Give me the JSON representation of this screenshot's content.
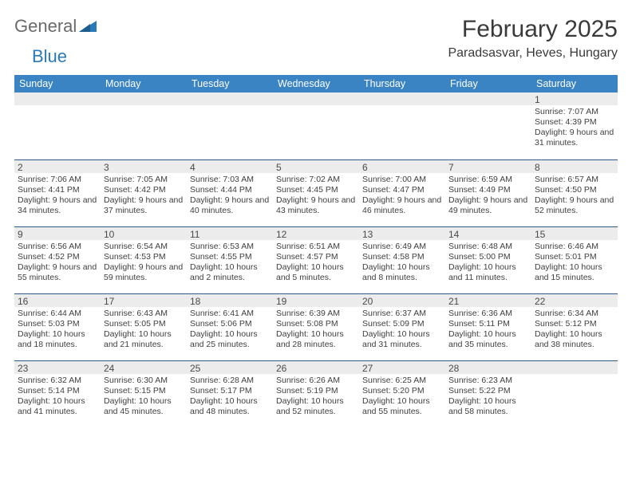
{
  "brand": {
    "word1": "General",
    "word2": "Blue"
  },
  "title": {
    "month": "February 2025",
    "location": "Paradsasvar, Heves, Hungary"
  },
  "columns": [
    "Sunday",
    "Monday",
    "Tuesday",
    "Wednesday",
    "Thursday",
    "Friday",
    "Saturday"
  ],
  "colors": {
    "header_bg": "#3a84c4",
    "header_text": "#ffffff",
    "row_rule": "#2f5a87",
    "daynum_bg": "#ececec",
    "brand_gray": "#6a6a6a",
    "brand_blue": "#2a7ab9"
  },
  "weeks": [
    [
      {
        "n": "",
        "sunrise": "",
        "sunset": "",
        "daylight": ""
      },
      {
        "n": "",
        "sunrise": "",
        "sunset": "",
        "daylight": ""
      },
      {
        "n": "",
        "sunrise": "",
        "sunset": "",
        "daylight": ""
      },
      {
        "n": "",
        "sunrise": "",
        "sunset": "",
        "daylight": ""
      },
      {
        "n": "",
        "sunrise": "",
        "sunset": "",
        "daylight": ""
      },
      {
        "n": "",
        "sunrise": "",
        "sunset": "",
        "daylight": ""
      },
      {
        "n": "1",
        "sunrise": "Sunrise: 7:07 AM",
        "sunset": "Sunset: 4:39 PM",
        "daylight": "Daylight: 9 hours and 31 minutes."
      }
    ],
    [
      {
        "n": "2",
        "sunrise": "Sunrise: 7:06 AM",
        "sunset": "Sunset: 4:41 PM",
        "daylight": "Daylight: 9 hours and 34 minutes."
      },
      {
        "n": "3",
        "sunrise": "Sunrise: 7:05 AM",
        "sunset": "Sunset: 4:42 PM",
        "daylight": "Daylight: 9 hours and 37 minutes."
      },
      {
        "n": "4",
        "sunrise": "Sunrise: 7:03 AM",
        "sunset": "Sunset: 4:44 PM",
        "daylight": "Daylight: 9 hours and 40 minutes."
      },
      {
        "n": "5",
        "sunrise": "Sunrise: 7:02 AM",
        "sunset": "Sunset: 4:45 PM",
        "daylight": "Daylight: 9 hours and 43 minutes."
      },
      {
        "n": "6",
        "sunrise": "Sunrise: 7:00 AM",
        "sunset": "Sunset: 4:47 PM",
        "daylight": "Daylight: 9 hours and 46 minutes."
      },
      {
        "n": "7",
        "sunrise": "Sunrise: 6:59 AM",
        "sunset": "Sunset: 4:49 PM",
        "daylight": "Daylight: 9 hours and 49 minutes."
      },
      {
        "n": "8",
        "sunrise": "Sunrise: 6:57 AM",
        "sunset": "Sunset: 4:50 PM",
        "daylight": "Daylight: 9 hours and 52 minutes."
      }
    ],
    [
      {
        "n": "9",
        "sunrise": "Sunrise: 6:56 AM",
        "sunset": "Sunset: 4:52 PM",
        "daylight": "Daylight: 9 hours and 55 minutes."
      },
      {
        "n": "10",
        "sunrise": "Sunrise: 6:54 AM",
        "sunset": "Sunset: 4:53 PM",
        "daylight": "Daylight: 9 hours and 59 minutes."
      },
      {
        "n": "11",
        "sunrise": "Sunrise: 6:53 AM",
        "sunset": "Sunset: 4:55 PM",
        "daylight": "Daylight: 10 hours and 2 minutes."
      },
      {
        "n": "12",
        "sunrise": "Sunrise: 6:51 AM",
        "sunset": "Sunset: 4:57 PM",
        "daylight": "Daylight: 10 hours and 5 minutes."
      },
      {
        "n": "13",
        "sunrise": "Sunrise: 6:49 AM",
        "sunset": "Sunset: 4:58 PM",
        "daylight": "Daylight: 10 hours and 8 minutes."
      },
      {
        "n": "14",
        "sunrise": "Sunrise: 6:48 AM",
        "sunset": "Sunset: 5:00 PM",
        "daylight": "Daylight: 10 hours and 11 minutes."
      },
      {
        "n": "15",
        "sunrise": "Sunrise: 6:46 AM",
        "sunset": "Sunset: 5:01 PM",
        "daylight": "Daylight: 10 hours and 15 minutes."
      }
    ],
    [
      {
        "n": "16",
        "sunrise": "Sunrise: 6:44 AM",
        "sunset": "Sunset: 5:03 PM",
        "daylight": "Daylight: 10 hours and 18 minutes."
      },
      {
        "n": "17",
        "sunrise": "Sunrise: 6:43 AM",
        "sunset": "Sunset: 5:05 PM",
        "daylight": "Daylight: 10 hours and 21 minutes."
      },
      {
        "n": "18",
        "sunrise": "Sunrise: 6:41 AM",
        "sunset": "Sunset: 5:06 PM",
        "daylight": "Daylight: 10 hours and 25 minutes."
      },
      {
        "n": "19",
        "sunrise": "Sunrise: 6:39 AM",
        "sunset": "Sunset: 5:08 PM",
        "daylight": "Daylight: 10 hours and 28 minutes."
      },
      {
        "n": "20",
        "sunrise": "Sunrise: 6:37 AM",
        "sunset": "Sunset: 5:09 PM",
        "daylight": "Daylight: 10 hours and 31 minutes."
      },
      {
        "n": "21",
        "sunrise": "Sunrise: 6:36 AM",
        "sunset": "Sunset: 5:11 PM",
        "daylight": "Daylight: 10 hours and 35 minutes."
      },
      {
        "n": "22",
        "sunrise": "Sunrise: 6:34 AM",
        "sunset": "Sunset: 5:12 PM",
        "daylight": "Daylight: 10 hours and 38 minutes."
      }
    ],
    [
      {
        "n": "23",
        "sunrise": "Sunrise: 6:32 AM",
        "sunset": "Sunset: 5:14 PM",
        "daylight": "Daylight: 10 hours and 41 minutes."
      },
      {
        "n": "24",
        "sunrise": "Sunrise: 6:30 AM",
        "sunset": "Sunset: 5:15 PM",
        "daylight": "Daylight: 10 hours and 45 minutes."
      },
      {
        "n": "25",
        "sunrise": "Sunrise: 6:28 AM",
        "sunset": "Sunset: 5:17 PM",
        "daylight": "Daylight: 10 hours and 48 minutes."
      },
      {
        "n": "26",
        "sunrise": "Sunrise: 6:26 AM",
        "sunset": "Sunset: 5:19 PM",
        "daylight": "Daylight: 10 hours and 52 minutes."
      },
      {
        "n": "27",
        "sunrise": "Sunrise: 6:25 AM",
        "sunset": "Sunset: 5:20 PM",
        "daylight": "Daylight: 10 hours and 55 minutes."
      },
      {
        "n": "28",
        "sunrise": "Sunrise: 6:23 AM",
        "sunset": "Sunset: 5:22 PM",
        "daylight": "Daylight: 10 hours and 58 minutes."
      },
      {
        "n": "",
        "sunrise": "",
        "sunset": "",
        "daylight": ""
      }
    ]
  ]
}
